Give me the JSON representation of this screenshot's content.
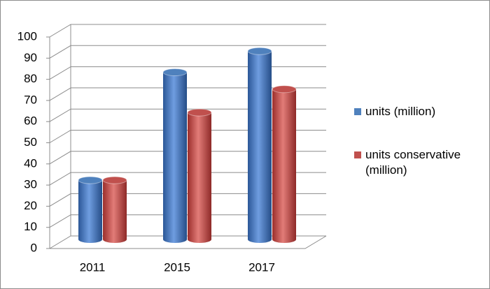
{
  "chart_data": {
    "type": "bar",
    "categories": [
      "2011",
      "2015",
      "2017"
    ],
    "series": [
      {
        "name": "units (million)",
        "color": "#4f81bd",
        "values": [
          31,
          82,
          92
        ]
      },
      {
        "name": "units conservative (million)",
        "color": "#c0504d",
        "values": [
          31,
          63,
          74
        ]
      }
    ],
    "ylim": [
      0,
      100
    ],
    "yticks": [
      0,
      10,
      20,
      30,
      40,
      50,
      60,
      70,
      80,
      90,
      100
    ],
    "grid": true,
    "legend": "right"
  }
}
